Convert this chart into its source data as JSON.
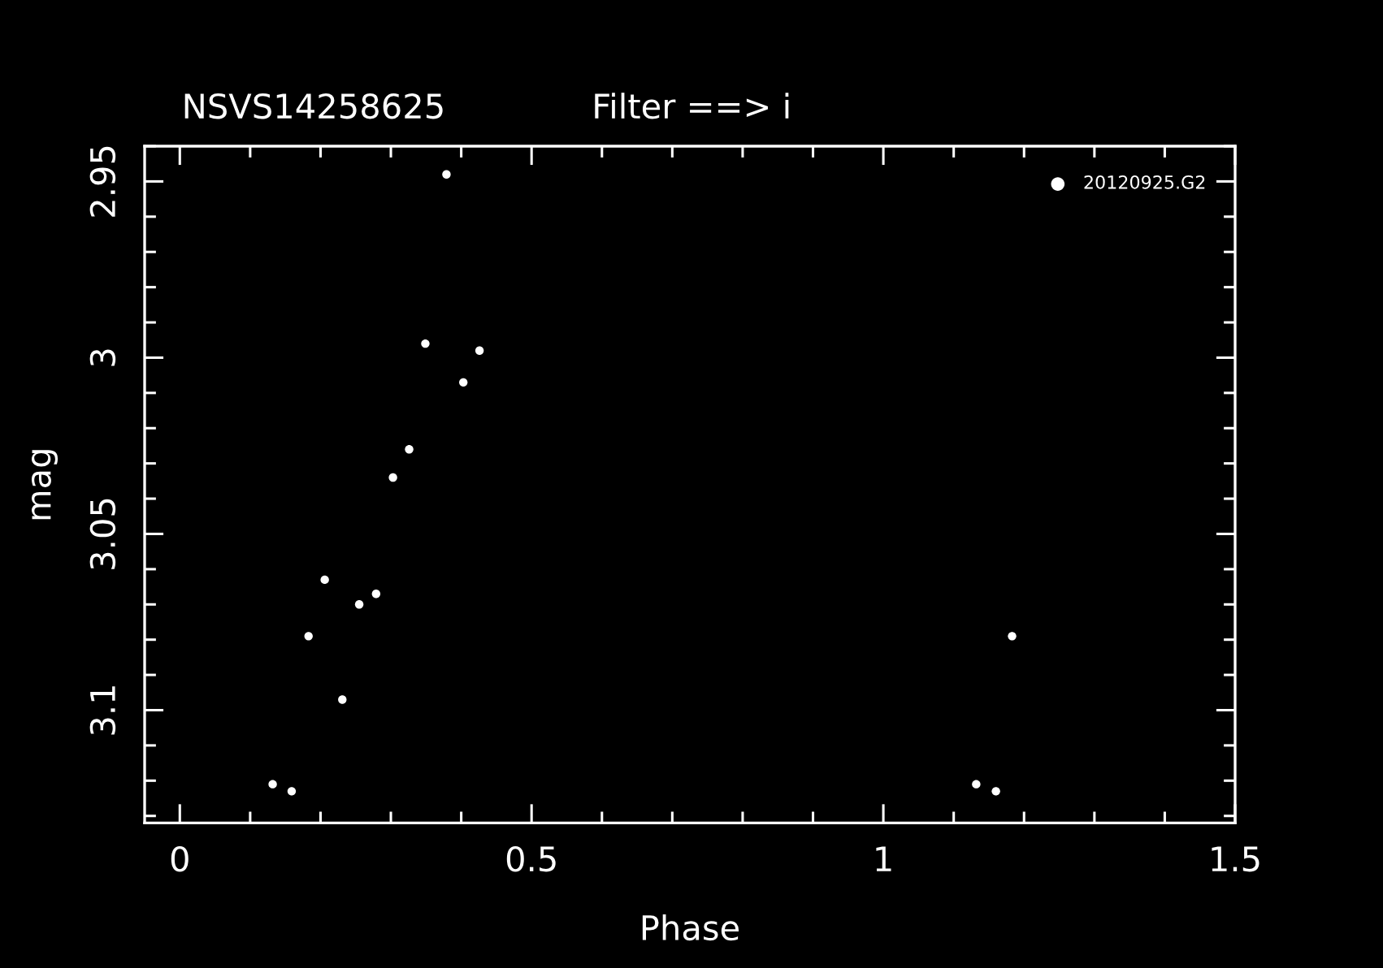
{
  "chart_data": {
    "type": "scatter",
    "title": "NSVS14258625",
    "subtitle": "Filter ==> i",
    "xlabel": "Phase",
    "ylabel": "mag",
    "xlim": [
      -0.05,
      1.5
    ],
    "ylim": [
      3.132,
      2.94
    ],
    "xticks": [
      0,
      {
        "value": 0.1,
        "label": null
      },
      {
        "value": 0.2,
        "label": null
      },
      {
        "value": 0.3,
        "label": null
      },
      {
        "value": 0.4,
        "label": null
      },
      0.5,
      {
        "value": 0.6,
        "label": null
      },
      {
        "value": 0.7,
        "label": null
      },
      {
        "value": 0.8,
        "label": null
      },
      {
        "value": 0.9,
        "label": null
      },
      1,
      {
        "value": 1.1,
        "label": null
      },
      {
        "value": 1.2,
        "label": null
      },
      {
        "value": 1.3,
        "label": null
      },
      {
        "value": 1.4,
        "label": null
      },
      1.5
    ],
    "yticks": [
      {
        "value": 2.94,
        "label": null
      },
      2.95,
      {
        "value": 2.96,
        "label": null
      },
      {
        "value": 2.97,
        "label": null
      },
      {
        "value": 2.98,
        "label": null
      },
      {
        "value": 2.99,
        "label": null
      },
      3,
      {
        "value": 3.01,
        "label": null
      },
      {
        "value": 3.02,
        "label": null
      },
      {
        "value": 3.03,
        "label": null
      },
      {
        "value": 3.04,
        "label": null
      },
      3.05,
      {
        "value": 3.06,
        "label": null
      },
      {
        "value": 3.07,
        "label": null
      },
      {
        "value": 3.08,
        "label": null
      },
      {
        "value": 3.09,
        "label": null
      },
      3.1,
      {
        "value": 3.11,
        "label": null
      },
      {
        "value": 3.12,
        "label": null
      },
      {
        "value": 3.13,
        "label": null
      }
    ],
    "series": [
      {
        "name": "20120925.G2",
        "color": "#ffffff",
        "x": [
          0.132,
          0.159,
          0.183,
          0.206,
          0.231,
          0.255,
          0.279,
          0.303,
          0.326,
          0.349,
          0.379,
          0.403,
          0.426,
          1.132,
          1.16,
          1.183
        ],
        "values": [
          3.121,
          3.123,
          3.079,
          3.063,
          3.097,
          3.07,
          3.067,
          3.034,
          3.026,
          2.996,
          2.948,
          3.007,
          2.998,
          3.121,
          3.123,
          3.079
        ]
      }
    ],
    "marker": "circle",
    "legend": "top right"
  }
}
